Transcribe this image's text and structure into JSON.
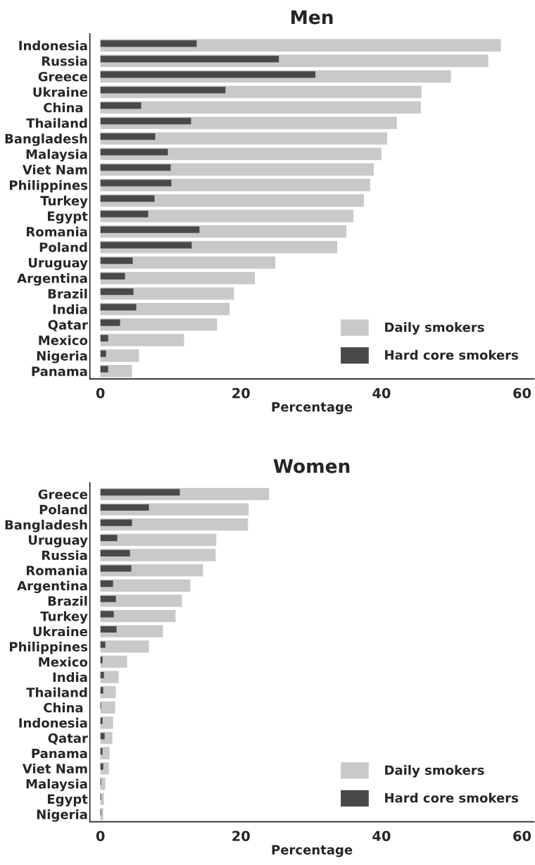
{
  "chart_data": [
    {
      "type": "bar",
      "title": "Men",
      "xlabel": "Percentage",
      "orientation": "horizontal",
      "legend": "bottom right",
      "grid": false,
      "categories": [
        "Indonesia",
        "Russia",
        "Greece",
        "Ukraine",
        "China ",
        "Thailand",
        "Bangladesh",
        "Malaysia",
        "Viet Nam",
        "Philippines",
        "Turkey",
        "Egypt",
        "Romania",
        "Poland",
        "Uruguay",
        "Argentina",
        "Brazil",
        "India",
        "Qatar",
        "Mexico",
        "Nigeria",
        "Panama"
      ],
      "xlim": [
        -1.5,
        61.7
      ],
      "xticks": [
        0,
        20,
        40,
        60
      ],
      "series": [
        {
          "name": "Daily smokers",
          "color": "#c8c9cb",
          "values": [
            57.0,
            55.2,
            49.9,
            45.7,
            45.6,
            42.2,
            40.8,
            40.0,
            38.9,
            38.4,
            37.5,
            36.0,
            35.0,
            33.7,
            24.9,
            22.0,
            19.0,
            18.4,
            16.6,
            11.9,
            5.5,
            4.5
          ]
        },
        {
          "name": "Hard core smokers",
          "color": "#48494b",
          "values": [
            13.7,
            25.4,
            30.6,
            17.8,
            5.8,
            12.9,
            7.8,
            9.6,
            10.0,
            10.1,
            7.7,
            6.8,
            14.1,
            13.0,
            4.6,
            3.5,
            4.7,
            5.1,
            2.8,
            1.1,
            0.8,
            1.1
          ]
        }
      ]
    },
    {
      "type": "bar",
      "title": "Women",
      "xlabel": "Percentage",
      "orientation": "horizontal",
      "legend": "bottom right",
      "grid": false,
      "categories": [
        "Greece",
        "Poland",
        "Bangladesh",
        "Uruguay",
        "Russia",
        "Romania",
        "Argentina",
        "Brazil",
        "Turkey",
        "Ukraine",
        "Philippines",
        "Mexico",
        "India",
        "Thailand",
        "China ",
        "Indonesia",
        "Qatar",
        "Panama",
        "Viet Nam",
        "Malaysia",
        "Egypt",
        "Nigeria"
      ],
      "xlim": [
        -1.5,
        61.7
      ],
      "xticks": [
        0,
        20,
        40,
        60
      ],
      "series": [
        {
          "name": "Daily smokers",
          "color": "#c8c9cb",
          "values": [
            24.0,
            21.1,
            21.0,
            16.5,
            16.4,
            14.6,
            12.8,
            11.6,
            10.7,
            8.9,
            6.9,
            3.8,
            2.6,
            2.2,
            2.1,
            1.8,
            1.7,
            1.3,
            1.2,
            0.7,
            0.5,
            0.4
          ]
        },
        {
          "name": "Hard core smokers",
          "color": "#48494b",
          "values": [
            11.3,
            6.9,
            4.5,
            2.4,
            4.2,
            4.4,
            1.8,
            2.2,
            1.9,
            2.3,
            0.7,
            0.3,
            0.5,
            0.4,
            0.1,
            0.3,
            0.6,
            0.3,
            0.4,
            0.1,
            0.1,
            0.1
          ]
        }
      ]
    }
  ]
}
